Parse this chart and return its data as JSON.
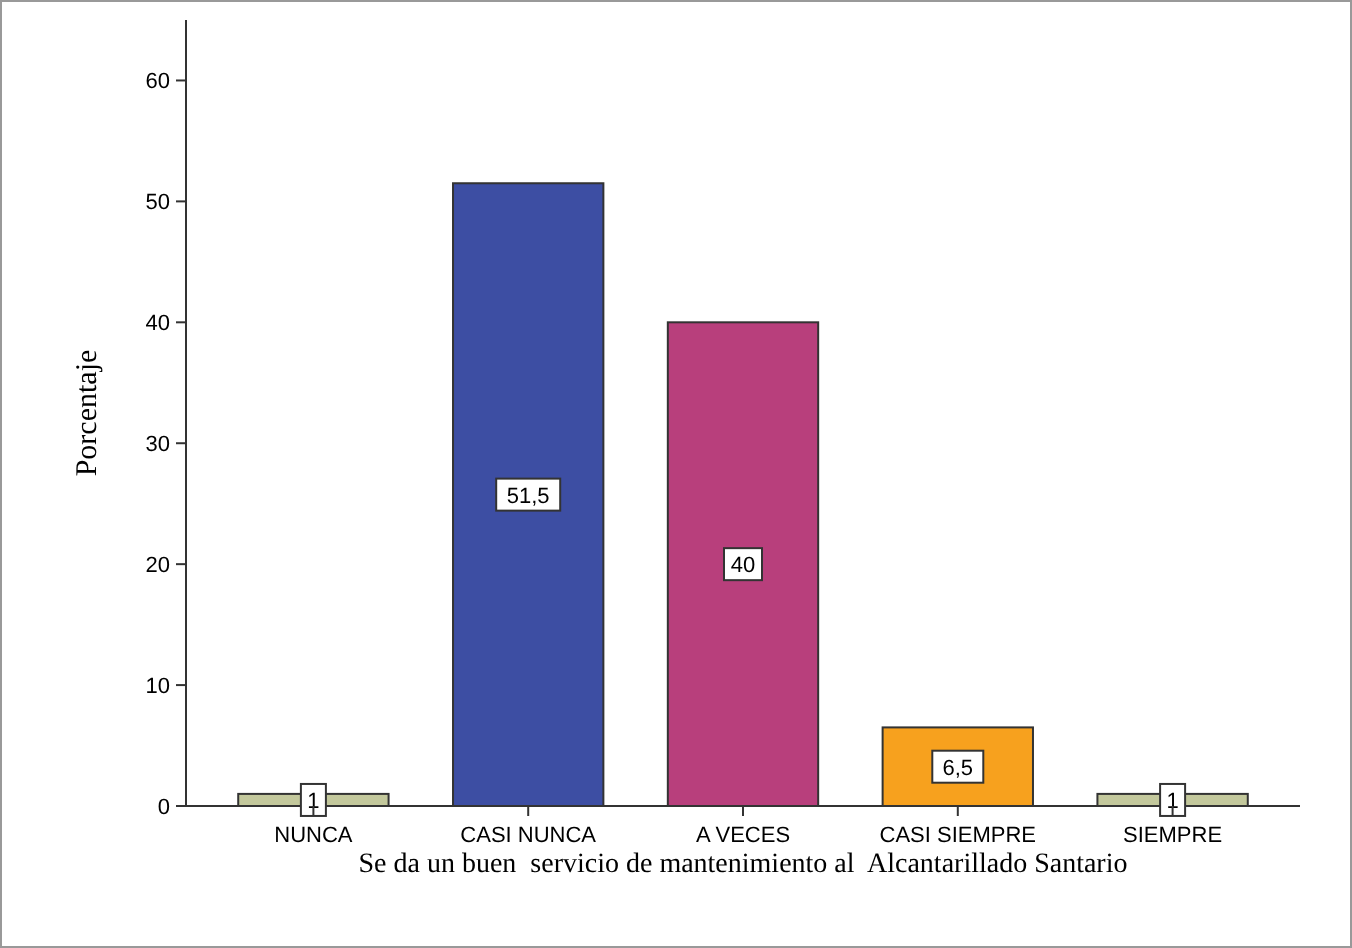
{
  "chart_data": {
    "type": "bar",
    "xlabel": "Se da un buen  servicio de mantenimiento al  Alcantarillado Santario",
    "ylabel": "Porcentaje",
    "categories": [
      "NUNCA",
      "CASI NUNCA",
      "A VECES",
      "CASI SIEMPRE",
      "SIEMPRE"
    ],
    "values": [
      1,
      51.5,
      40,
      6.5,
      1
    ],
    "colors": [
      "#c3c89c",
      "#3d4ea3",
      "#b83f7c",
      "#f7a11e",
      "#c3c89c"
    ],
    "value_labels": [
      "1",
      "51,5",
      "40",
      "6,5",
      "1"
    ],
    "ylim": [
      0,
      65
    ],
    "yticks": [
      0,
      10,
      20,
      30,
      40,
      50,
      60
    ]
  }
}
